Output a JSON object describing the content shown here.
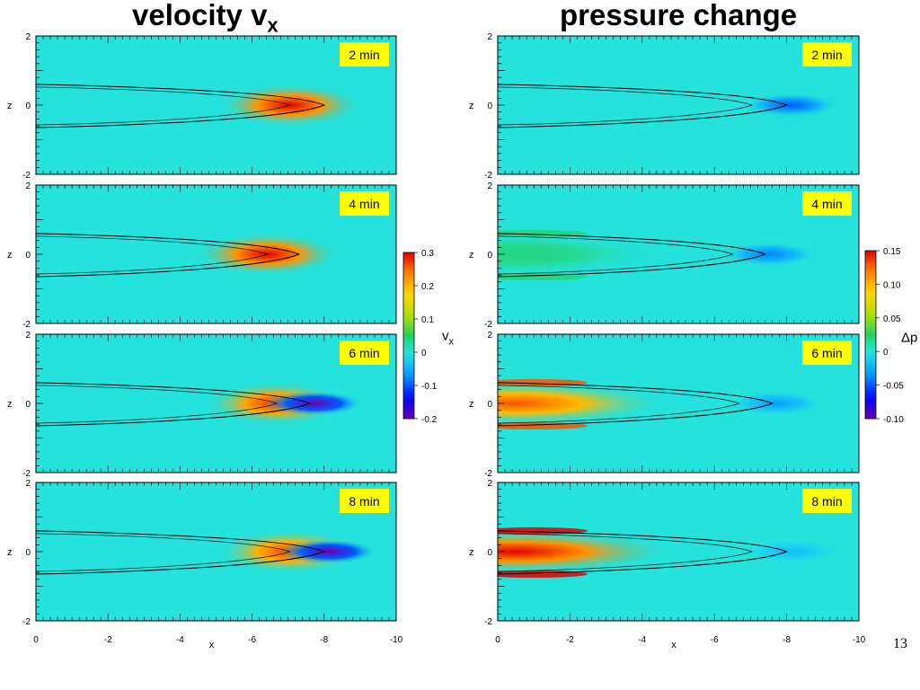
{
  "page_number": "13",
  "titles": {
    "left_main": "velocity v",
    "left_sub": "x",
    "right": "pressure change"
  },
  "chart_data": [
    {
      "type": "heatmap",
      "title": "velocity vx",
      "xlabel": "x",
      "ylabel": "z",
      "xlim": [
        0,
        -10
      ],
      "ylim": [
        -2,
        2
      ],
      "x_ticks": [
        "0",
        "-2",
        "-4",
        "-6",
        "-8",
        "-10"
      ],
      "y_ticks": [
        "2",
        "0",
        "-2"
      ],
      "colorbar": {
        "label_main": "v",
        "label_sub": "x",
        "range": [
          -0.2,
          0.3
        ],
        "ticks": [
          "0.3",
          "0.2",
          "0.1",
          "0",
          "-0.1",
          "-0.2"
        ],
        "tick_values": [
          0.3,
          0.2,
          0.1,
          0,
          -0.1,
          -0.2
        ]
      },
      "background_value": 0.0,
      "panels": [
        {
          "label": "2 min",
          "front_x": -8.0,
          "pos_peak": 0.3,
          "neg_peak": 0.0
        },
        {
          "label": "4 min",
          "front_x": -7.3,
          "pos_peak": 0.3,
          "neg_peak": 0.0
        },
        {
          "label": "6 min",
          "front_x": -7.6,
          "pos_peak": 0.28,
          "neg_peak": -0.2
        },
        {
          "label": "8 min",
          "front_x": -8.0,
          "pos_peak": 0.27,
          "neg_peak": -0.2
        }
      ]
    },
    {
      "type": "heatmap",
      "title": "pressure change",
      "xlabel": "x",
      "ylabel": "z",
      "xlim": [
        0,
        -10
      ],
      "ylim": [
        -2,
        2
      ],
      "x_ticks": [
        "0",
        "-2",
        "-4",
        "-6",
        "-8",
        "-10"
      ],
      "y_ticks": [
        "2",
        "0",
        "-2"
      ],
      "colorbar": {
        "label": "Δp",
        "range": [
          -0.1,
          0.15
        ],
        "ticks": [
          "0.15",
          "0.10",
          "0.05",
          "0",
          "-0.05",
          "-0.10"
        ],
        "tick_values": [
          0.15,
          0.1,
          0.05,
          0,
          -0.05,
          -0.1
        ]
      },
      "background_value": 0.0,
      "panels": [
        {
          "label": "2 min",
          "front_x": -8.0,
          "pos_peak": 0.0,
          "neg_peak": -0.05
        },
        {
          "label": "4 min",
          "front_x": -7.4,
          "pos_peak": 0.02,
          "neg_peak": -0.04
        },
        {
          "label": "6 min",
          "front_x": -7.6,
          "pos_peak": 0.13,
          "neg_peak": -0.03
        },
        {
          "label": "8 min",
          "front_x": -8.0,
          "pos_peak": 0.15,
          "neg_peak": -0.02
        }
      ]
    }
  ]
}
